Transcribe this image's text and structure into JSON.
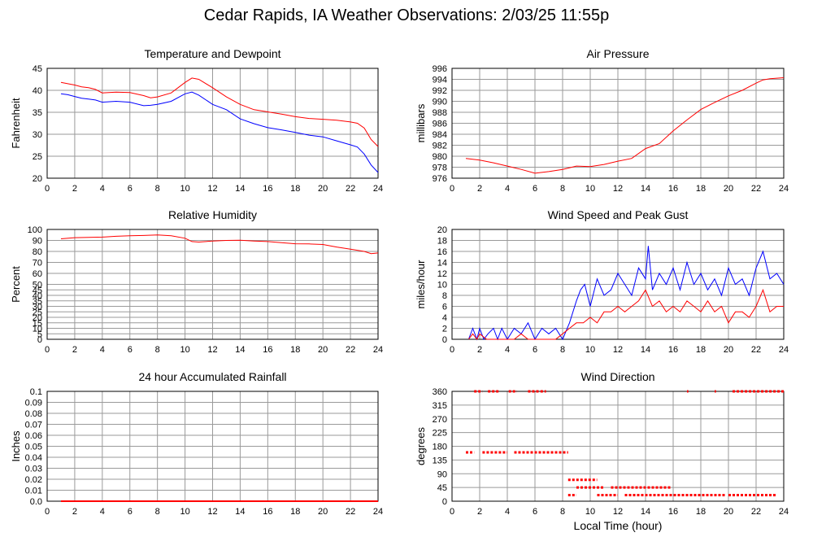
{
  "title": "Cedar Rapids, IA Weather Observations: 2/03/25 11:55p",
  "xlabel_bottom": "Local Time (hour)",
  "colors": {
    "red": "#ff0000",
    "blue": "#0000ff",
    "grid": "#9a9a9a"
  },
  "chart_data": [
    {
      "type": "line",
      "title": "Temperature and Dewpoint",
      "ylabel": "Fahrenheit",
      "xlim": [
        0,
        24
      ],
      "ylim": [
        20,
        45
      ],
      "xticks": [
        "0",
        "2",
        "4",
        "6",
        "8",
        "10",
        "12",
        "14",
        "16",
        "18",
        "20",
        "22",
        "24"
      ],
      "yticks": [
        "20",
        "25",
        "30",
        "35",
        "40",
        "45"
      ],
      "grid": true,
      "series": [
        {
          "color": "#ff0000",
          "x": [
            1,
            1.5,
            2,
            2.5,
            3,
            3.5,
            4,
            5,
            6,
            7,
            7.5,
            8,
            9,
            10,
            10.5,
            11,
            12,
            13,
            14,
            15,
            16,
            17,
            18,
            19,
            20,
            21,
            22,
            22.5,
            23,
            23.5,
            24
          ],
          "y": [
            41.8,
            41.5,
            41.2,
            40.8,
            40.6,
            40.2,
            39.4,
            39.6,
            39.5,
            38.8,
            38.3,
            38.5,
            39.4,
            41.8,
            42.8,
            42.5,
            40.6,
            38.5,
            36.8,
            35.6,
            35.1,
            34.6,
            34.0,
            33.6,
            33.4,
            33.2,
            32.8,
            32.5,
            31.4,
            28.8,
            27.2
          ]
        },
        {
          "color": "#0000ff",
          "x": [
            1,
            1.5,
            2,
            2.5,
            3,
            3.5,
            4,
            5,
            6,
            7,
            7.5,
            8,
            9,
            10,
            10.5,
            11,
            12,
            13,
            14,
            15,
            16,
            17,
            18,
            19,
            20,
            21,
            22,
            22.5,
            23,
            23.5,
            24
          ],
          "y": [
            39.2,
            39.0,
            38.6,
            38.2,
            38.0,
            37.8,
            37.3,
            37.5,
            37.3,
            36.5,
            36.6,
            36.8,
            37.5,
            39.2,
            39.6,
            38.9,
            36.8,
            35.6,
            33.5,
            32.4,
            31.5,
            31.0,
            30.4,
            29.8,
            29.4,
            28.5,
            27.6,
            27.1,
            25.5,
            23.0,
            21.3
          ]
        }
      ]
    },
    {
      "type": "line",
      "title": "Air Pressure",
      "ylabel": "millibars",
      "xlim": [
        0,
        24
      ],
      "ylim": [
        976,
        996
      ],
      "xticks": [
        "0",
        "2",
        "4",
        "6",
        "8",
        "10",
        "12",
        "14",
        "16",
        "18",
        "20",
        "22",
        "24"
      ],
      "yticks": [
        "976",
        "978",
        "980",
        "982",
        "984",
        "986",
        "988",
        "990",
        "992",
        "994",
        "996"
      ],
      "grid": true,
      "series": [
        {
          "color": "#ff0000",
          "x": [
            1,
            2,
            3,
            4,
            5,
            6,
            7,
            8,
            9,
            10,
            11,
            12,
            13,
            14,
            15,
            16,
            17,
            18,
            19,
            20,
            21,
            22,
            22.5,
            23,
            24
          ],
          "y": [
            979.6,
            979.3,
            978.8,
            978.2,
            977.6,
            976.9,
            977.2,
            977.6,
            978.2,
            978.1,
            978.5,
            979.1,
            979.6,
            981.4,
            982.3,
            984.6,
            986.6,
            988.5,
            989.8,
            991.0,
            992.0,
            993.3,
            993.9,
            994.1,
            994.3
          ]
        }
      ]
    },
    {
      "type": "line",
      "title": "Relative Humidity",
      "ylabel": "Percent",
      "xlim": [
        0,
        24
      ],
      "ylim": [
        0,
        100
      ],
      "xticks": [
        "0",
        "2",
        "4",
        "6",
        "8",
        "10",
        "12",
        "14",
        "16",
        "18",
        "20",
        "22",
        "24"
      ],
      "yticks": [
        "0",
        "5",
        "10",
        "15",
        "20",
        "25",
        "30",
        "35",
        "40",
        "45",
        "50",
        "60",
        "70",
        "80",
        "90",
        "100"
      ],
      "grid": true,
      "series": [
        {
          "color": "#ff0000",
          "x": [
            1,
            2,
            3,
            4,
            5,
            6,
            7,
            8,
            9,
            10,
            10.5,
            11,
            12,
            13,
            14,
            15,
            16,
            17,
            18,
            19,
            20,
            21,
            22,
            23,
            23.5,
            24
          ],
          "y": [
            91.5,
            92.5,
            92.8,
            93.0,
            93.8,
            94.3,
            94.5,
            95.0,
            94.2,
            92.0,
            89.0,
            88.5,
            89.5,
            90.0,
            90.2,
            89.5,
            89.0,
            88.0,
            87.0,
            86.8,
            86.3,
            84.0,
            82.0,
            80.0,
            78.0,
            78.6
          ]
        }
      ]
    },
    {
      "type": "line",
      "title": "Wind Speed and Peak Gust",
      "ylabel": "miles/hour",
      "xlim": [
        0,
        24
      ],
      "ylim": [
        0,
        20
      ],
      "xticks": [
        "0",
        "2",
        "4",
        "6",
        "8",
        "10",
        "12",
        "14",
        "16",
        "18",
        "20",
        "22",
        "24"
      ],
      "yticks": [
        "0",
        "2",
        "4",
        "6",
        "8",
        "10",
        "12",
        "14",
        "16",
        "18",
        "20"
      ],
      "grid": true,
      "series": [
        {
          "color": "#0000ff",
          "x": [
            1.2,
            1.5,
            1.8,
            2.0,
            2.3,
            2.6,
            3.0,
            3.3,
            3.6,
            4.0,
            4.5,
            5.0,
            5.5,
            6.0,
            6.5,
            7.0,
            7.5,
            8.0,
            8.5,
            9.0,
            9.3,
            9.6,
            10,
            10.5,
            11,
            11.5,
            12,
            12.5,
            13,
            13.5,
            14,
            14.2,
            14.5,
            15,
            15.5,
            16,
            16.5,
            17,
            17.5,
            18,
            18.5,
            19,
            19.5,
            20,
            20.5,
            21,
            21.5,
            22,
            22.5,
            23,
            23.5,
            24
          ],
          "y": [
            0,
            2,
            0,
            2,
            0,
            1,
            2,
            0,
            2,
            0,
            2,
            1,
            3,
            0,
            2,
            1,
            2,
            0,
            3,
            7,
            9,
            10,
            6,
            11,
            8,
            9,
            12,
            10,
            8,
            13,
            11,
            17,
            9,
            12,
            10,
            13,
            9,
            14,
            10,
            12,
            9,
            11,
            8,
            13,
            10,
            11,
            8,
            13,
            16,
            11,
            12,
            10
          ]
        },
        {
          "color": "#ff0000",
          "x": [
            1.2,
            1.5,
            1.8,
            2.0,
            2.5,
            3.0,
            3.5,
            4.0,
            4.5,
            5.0,
            5.5,
            6.0,
            6.5,
            7.0,
            7.5,
            8.0,
            8.5,
            9.0,
            9.5,
            10,
            10.5,
            11,
            11.5,
            12,
            12.5,
            13,
            13.5,
            14,
            14.5,
            15,
            15.5,
            16,
            16.5,
            17,
            17.5,
            18,
            18.5,
            19,
            19.5,
            20,
            20.5,
            21,
            21.5,
            22,
            22.5,
            23,
            23.5,
            24
          ],
          "y": [
            0,
            1,
            0,
            1,
            0,
            0,
            0,
            0,
            0,
            1,
            0,
            0,
            0,
            0,
            0,
            1,
            2,
            3,
            3,
            4,
            3,
            5,
            5,
            6,
            5,
            6,
            7,
            9,
            6,
            7,
            5,
            6,
            5,
            7,
            6,
            5,
            7,
            5,
            6,
            3,
            5,
            5,
            4,
            6,
            9,
            5,
            6,
            6
          ]
        }
      ]
    },
    {
      "type": "line",
      "title": "24 hour Accumulated Rainfall",
      "ylabel": "Inches",
      "xlim": [
        0,
        24
      ],
      "ylim": [
        0,
        0.1
      ],
      "xticks": [
        "0",
        "2",
        "4",
        "6",
        "8",
        "10",
        "12",
        "14",
        "16",
        "18",
        "20",
        "22",
        "24"
      ],
      "yticks": [
        "0.0",
        "0.01",
        "0.02",
        "0.03",
        "0.04",
        "0.05",
        "0.06",
        "0.07",
        "0.08",
        "0.09",
        "0.1"
      ],
      "grid": true,
      "series": [
        {
          "color": "#ff0000",
          "x": [
            1,
            24
          ],
          "y": [
            0,
            0
          ]
        }
      ]
    },
    {
      "type": "scatter",
      "title": "Wind Direction",
      "ylabel": "degrees",
      "xlabel": "Local Time (hour)",
      "xlim": [
        0,
        24
      ],
      "ylim": [
        0,
        360
      ],
      "xticks": [
        "0",
        "2",
        "4",
        "6",
        "8",
        "10",
        "12",
        "14",
        "16",
        "18",
        "20",
        "22",
        "24"
      ],
      "yticks": [
        "0",
        "45",
        "90",
        "135",
        "180",
        "225",
        "270",
        "315",
        "360"
      ],
      "grid": true,
      "series": [
        {
          "color": "#ff0000",
          "segments": [
            {
              "x0": 1.0,
              "x1": 1.6,
              "y": 160
            },
            {
              "x0": 1.6,
              "x1": 2.2,
              "y": 360
            },
            {
              "x0": 2.2,
              "x1": 4.0,
              "y": 160
            },
            {
              "x0": 2.6,
              "x1": 3.4,
              "y": 360
            },
            {
              "x0": 4.1,
              "x1": 4.7,
              "y": 360
            },
            {
              "x0": 4.5,
              "x1": 8.4,
              "y": 160
            },
            {
              "x0": 5.5,
              "x1": 6.3,
              "y": 360
            },
            {
              "x0": 6.4,
              "x1": 6.8,
              "y": 360
            },
            {
              "x0": 8.4,
              "x1": 9.0,
              "y": 20
            },
            {
              "x0": 8.4,
              "x1": 10.5,
              "y": 70
            },
            {
              "x0": 9.0,
              "x1": 11.0,
              "y": 45
            },
            {
              "x0": 10.5,
              "x1": 12.0,
              "y": 20
            },
            {
              "x0": 11.5,
              "x1": 15.9,
              "y": 45
            },
            {
              "x0": 12.5,
              "x1": 19.8,
              "y": 20
            },
            {
              "x0": 17.0,
              "x1": 17.1,
              "y": 360
            },
            {
              "x0": 19.0,
              "x1": 19.1,
              "y": 360
            },
            {
              "x0": 20.0,
              "x1": 23.5,
              "y": 20
            },
            {
              "x0": 20.3,
              "x1": 24.0,
              "y": 360
            }
          ]
        }
      ]
    }
  ]
}
